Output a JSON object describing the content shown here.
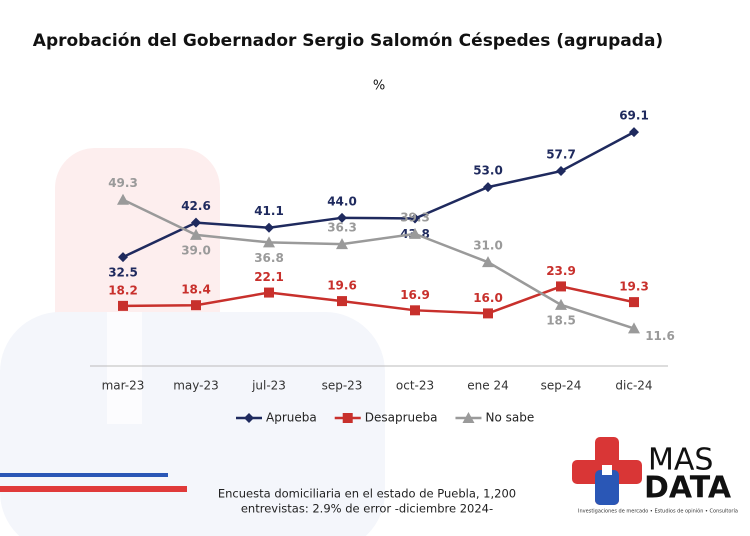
{
  "chart_data": {
    "type": "line",
    "title": "Aprobación del Gobernador Sergio Salomón Céspedes (agrupada)",
    "subtitle": "%",
    "categories": [
      "mar-23",
      "may-23",
      "jul-23",
      "sep-23",
      "oct-23",
      "ene 24",
      "sep-24",
      "dic-24"
    ],
    "ylim": [
      0,
      75
    ],
    "series": [
      {
        "name": "Aprueba",
        "color": "#1f2a5e",
        "marker": "diamond",
        "values": [
          32.5,
          42.6,
          41.1,
          44.0,
          43.8,
          53.0,
          57.7,
          69.1
        ],
        "value_labels": [
          "32.5",
          "42.6",
          "41.1",
          "44.0",
          "43.8",
          "53.0",
          "57.7",
          "69.1"
        ]
      },
      {
        "name": "Desaprueba",
        "color": "#c8302c",
        "marker": "square",
        "values": [
          18.2,
          18.4,
          22.1,
          19.6,
          16.9,
          16.0,
          23.9,
          19.3
        ],
        "value_labels": [
          "18.2",
          "18.4",
          "22.1",
          "19.6",
          "16.9",
          "16.0",
          "23.9",
          "19.3"
        ]
      },
      {
        "name": "No sabe",
        "color": "#9a9a9a",
        "marker": "triangle",
        "values": [
          49.3,
          39.0,
          36.8,
          36.3,
          39.3,
          31.0,
          18.5,
          11.6
        ],
        "value_labels": [
          "49.3",
          "39.0",
          "36.8",
          "36.3",
          "39.3",
          "31.0",
          "18.5",
          "11.6"
        ]
      }
    ],
    "legend": "bottom",
    "notes": [
      "Encuesta domiciliaria en el estado de Puebla, 1,200",
      "entrevistas: 2.9% de error -diciembre 2024-"
    ]
  },
  "logo": {
    "line1": "MAS",
    "line2": "DATA",
    "tagline": "Investigaciones de mercado • Estudios de opinión • Consultoría"
  }
}
